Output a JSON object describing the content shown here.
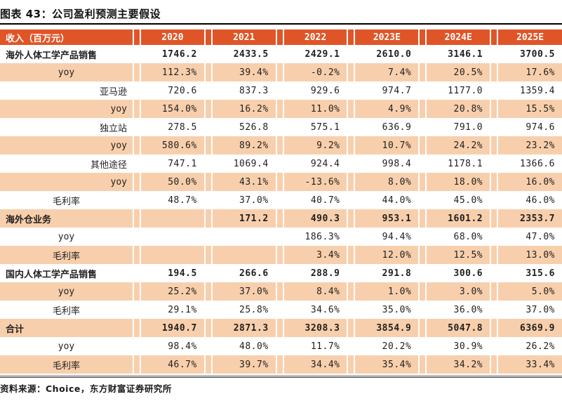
{
  "title": "图表 43：公司盈利预测主要假设",
  "source_note": "资料来源：Choice，东方财富证券研究所",
  "colors": {
    "header_bg": "#E05528",
    "row_alt_bg": "#F8CFAC",
    "row_bg": "#FFFFFF",
    "title_rule": "#000000",
    "bottom_rule_light": "#9B9B9B",
    "bottom_rule_dark": "#6F6F6F",
    "header_text": "#FFFFFF",
    "body_text": "#1F1F1F"
  },
  "chart_data": {
    "type": "table",
    "title": "图表 43：公司盈利预测主要假设",
    "header": {
      "label": "收入（百万元）",
      "years": [
        "2020",
        "2021",
        "2022",
        "2023E",
        "2024E",
        "2025E"
      ]
    },
    "rows": [
      {
        "label": "海外人体工学产品销售",
        "align": "left",
        "bold": true,
        "values": [
          "1746.2",
          "2433.5",
          "2429.1",
          "2610.0",
          "3146.1",
          "3700.5"
        ]
      },
      {
        "label": "yoy",
        "align": "center",
        "bold": false,
        "values": [
          "112.3%",
          "39.4%",
          "-0.2%",
          "7.4%",
          "20.5%",
          "17.6%"
        ]
      },
      {
        "label": "亚马逊",
        "align": "right",
        "bold": false,
        "values": [
          "720.6",
          "837.3",
          "929.6",
          "974.7",
          "1177.0",
          "1359.4"
        ]
      },
      {
        "label": "yoy",
        "align": "right",
        "bold": false,
        "values": [
          "154.0%",
          "16.2%",
          "11.0%",
          "4.9%",
          "20.8%",
          "15.5%"
        ]
      },
      {
        "label": "独立站",
        "align": "right",
        "bold": false,
        "values": [
          "278.5",
          "526.8",
          "575.1",
          "636.9",
          "791.0",
          "974.6"
        ]
      },
      {
        "label": "yoy",
        "align": "right",
        "bold": false,
        "values": [
          "580.6%",
          "89.2%",
          "9.2%",
          "10.7%",
          "24.2%",
          "23.2%"
        ]
      },
      {
        "label": "其他途径",
        "align": "right",
        "bold": false,
        "values": [
          "747.1",
          "1069.4",
          "924.4",
          "998.4",
          "1178.1",
          "1366.6"
        ]
      },
      {
        "label": "yoy",
        "align": "right",
        "bold": false,
        "values": [
          "50.0%",
          "43.1%",
          "-13.6%",
          "8.0%",
          "18.0%",
          "16.0%"
        ]
      },
      {
        "label": "毛利率",
        "align": "center",
        "bold": false,
        "values": [
          "48.7%",
          "37.0%",
          "40.7%",
          "44.0%",
          "45.0%",
          "46.0%"
        ]
      },
      {
        "label": "海外仓业务",
        "align": "left",
        "bold": true,
        "values": [
          "",
          "171.2",
          "490.3",
          "953.1",
          "1601.2",
          "2353.7"
        ]
      },
      {
        "label": "yoy",
        "align": "center",
        "bold": false,
        "values": [
          "",
          "",
          "186.3%",
          "94.4%",
          "68.0%",
          "47.0%"
        ]
      },
      {
        "label": "毛利率",
        "align": "center",
        "bold": false,
        "values": [
          "",
          "",
          "3.4%",
          "12.0%",
          "12.5%",
          "13.0%"
        ]
      },
      {
        "label": "国内人体工学产品销售",
        "align": "left",
        "bold": true,
        "values": [
          "194.5",
          "266.6",
          "288.9",
          "291.8",
          "300.6",
          "315.6"
        ]
      },
      {
        "label": "yoy",
        "align": "center",
        "bold": false,
        "values": [
          "25.2%",
          "37.0%",
          "8.4%",
          "1.0%",
          "3.0%",
          "5.0%"
        ]
      },
      {
        "label": "毛利率",
        "align": "center",
        "bold": false,
        "values": [
          "29.1%",
          "25.8%",
          "34.6%",
          "35.0%",
          "36.0%",
          "37.0%"
        ]
      },
      {
        "label": "合计",
        "align": "left",
        "bold": true,
        "values": [
          "1940.7",
          "2871.3",
          "3208.3",
          "3854.9",
          "5047.8",
          "6369.9"
        ]
      },
      {
        "label": "yoy",
        "align": "center",
        "bold": false,
        "values": [
          "98.4%",
          "48.0%",
          "11.7%",
          "20.2%",
          "30.9%",
          "26.2%"
        ]
      },
      {
        "label": "毛利率",
        "align": "center",
        "bold": false,
        "values": [
          "46.7%",
          "39.7%",
          "34.4%",
          "35.4%",
          "34.2%",
          "33.4%"
        ]
      }
    ]
  }
}
